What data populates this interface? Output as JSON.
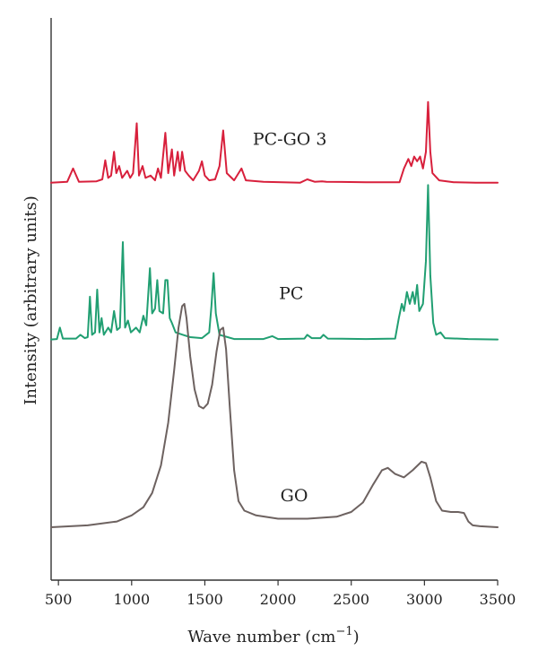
{
  "chart_data": {
    "type": "line",
    "title": "",
    "xlabel": "Wave number (cm",
    "xlabel_sup": "−1",
    "xlabel_close": ")",
    "ylabel": "Intensity (arbitrary units)",
    "xlim": [
      450,
      3500
    ],
    "ylim": [
      0,
      10
    ],
    "x_ticks": [
      500,
      1000,
      1500,
      2000,
      2500,
      3000,
      3500
    ],
    "x_tick_labels": [
      "500",
      "1000",
      "1500",
      "2000",
      "2500",
      "3000",
      "3500"
    ],
    "y_ticks_shown": false,
    "grid": false,
    "legend": "none",
    "series": [
      {
        "name": "PC-GO 3",
        "color": "#d8203c",
        "baseline": 7.25,
        "points": [
          [
            450,
            7.25
          ],
          [
            560,
            7.27
          ],
          [
            600,
            7.55
          ],
          [
            640,
            7.27
          ],
          [
            760,
            7.28
          ],
          [
            800,
            7.32
          ],
          [
            820,
            7.72
          ],
          [
            840,
            7.35
          ],
          [
            860,
            7.4
          ],
          [
            880,
            7.9
          ],
          [
            895,
            7.45
          ],
          [
            915,
            7.6
          ],
          [
            935,
            7.35
          ],
          [
            970,
            7.5
          ],
          [
            990,
            7.35
          ],
          [
            1010,
            7.45
          ],
          [
            1035,
            8.5
          ],
          [
            1050,
            7.4
          ],
          [
            1075,
            7.6
          ],
          [
            1095,
            7.35
          ],
          [
            1130,
            7.4
          ],
          [
            1160,
            7.3
          ],
          [
            1180,
            7.55
          ],
          [
            1200,
            7.35
          ],
          [
            1230,
            8.3
          ],
          [
            1250,
            7.45
          ],
          [
            1275,
            7.95
          ],
          [
            1290,
            7.4
          ],
          [
            1315,
            7.9
          ],
          [
            1330,
            7.5
          ],
          [
            1345,
            7.9
          ],
          [
            1365,
            7.5
          ],
          [
            1390,
            7.4
          ],
          [
            1420,
            7.3
          ],
          [
            1460,
            7.5
          ],
          [
            1480,
            7.7
          ],
          [
            1500,
            7.4
          ],
          [
            1530,
            7.3
          ],
          [
            1570,
            7.32
          ],
          [
            1600,
            7.6
          ],
          [
            1625,
            8.35
          ],
          [
            1650,
            7.45
          ],
          [
            1700,
            7.3
          ],
          [
            1750,
            7.55
          ],
          [
            1780,
            7.3
          ],
          [
            1900,
            7.27
          ],
          [
            2150,
            7.25
          ],
          [
            2200,
            7.32
          ],
          [
            2250,
            7.27
          ],
          [
            2300,
            7.28
          ],
          [
            2330,
            7.27
          ],
          [
            2600,
            7.26
          ],
          [
            2830,
            7.26
          ],
          [
            2860,
            7.55
          ],
          [
            2890,
            7.75
          ],
          [
            2910,
            7.6
          ],
          [
            2930,
            7.8
          ],
          [
            2950,
            7.7
          ],
          [
            2970,
            7.8
          ],
          [
            2990,
            7.55
          ],
          [
            3010,
            7.9
          ],
          [
            3025,
            8.95
          ],
          [
            3040,
            7.9
          ],
          [
            3055,
            7.45
          ],
          [
            3100,
            7.3
          ],
          [
            3200,
            7.26
          ],
          [
            3350,
            7.25
          ],
          [
            3500,
            7.25
          ]
        ]
      },
      {
        "name": "PC",
        "color": "#219f72",
        "baseline": 3.95,
        "points": [
          [
            450,
            3.95
          ],
          [
            490,
            3.96
          ],
          [
            510,
            4.2
          ],
          [
            530,
            3.97
          ],
          [
            620,
            3.97
          ],
          [
            650,
            4.05
          ],
          [
            680,
            3.98
          ],
          [
            700,
            4.0
          ],
          [
            715,
            4.85
          ],
          [
            730,
            4.05
          ],
          [
            750,
            4.1
          ],
          [
            765,
            5.0
          ],
          [
            780,
            4.1
          ],
          [
            795,
            4.4
          ],
          [
            810,
            4.05
          ],
          [
            840,
            4.2
          ],
          [
            860,
            4.1
          ],
          [
            880,
            4.55
          ],
          [
            900,
            4.15
          ],
          [
            920,
            4.2
          ],
          [
            940,
            6.0
          ],
          [
            955,
            4.2
          ],
          [
            975,
            4.35
          ],
          [
            995,
            4.1
          ],
          [
            1030,
            4.2
          ],
          [
            1055,
            4.1
          ],
          [
            1080,
            4.45
          ],
          [
            1100,
            4.25
          ],
          [
            1125,
            5.45
          ],
          [
            1140,
            4.5
          ],
          [
            1160,
            4.6
          ],
          [
            1175,
            5.2
          ],
          [
            1190,
            4.55
          ],
          [
            1215,
            4.5
          ],
          [
            1230,
            5.2
          ],
          [
            1245,
            5.2
          ],
          [
            1260,
            4.4
          ],
          [
            1275,
            4.3
          ],
          [
            1300,
            4.1
          ],
          [
            1350,
            4.05
          ],
          [
            1400,
            4.0
          ],
          [
            1480,
            3.98
          ],
          [
            1530,
            4.1
          ],
          [
            1545,
            4.65
          ],
          [
            1560,
            5.35
          ],
          [
            1575,
            4.5
          ],
          [
            1600,
            4.05
          ],
          [
            1700,
            3.96
          ],
          [
            1900,
            3.96
          ],
          [
            1960,
            4.02
          ],
          [
            2000,
            3.96
          ],
          [
            2180,
            3.97
          ],
          [
            2200,
            4.05
          ],
          [
            2230,
            3.98
          ],
          [
            2290,
            3.98
          ],
          [
            2310,
            4.05
          ],
          [
            2340,
            3.97
          ],
          [
            2600,
            3.96
          ],
          [
            2800,
            3.97
          ],
          [
            2825,
            4.4
          ],
          [
            2845,
            4.7
          ],
          [
            2860,
            4.55
          ],
          [
            2880,
            4.95
          ],
          [
            2900,
            4.7
          ],
          [
            2920,
            4.95
          ],
          [
            2935,
            4.7
          ],
          [
            2950,
            5.1
          ],
          [
            2965,
            4.55
          ],
          [
            2990,
            4.7
          ],
          [
            3010,
            5.6
          ],
          [
            3025,
            7.2
          ],
          [
            3040,
            5.3
          ],
          [
            3060,
            4.3
          ],
          [
            3080,
            4.05
          ],
          [
            3110,
            4.1
          ],
          [
            3140,
            3.98
          ],
          [
            3300,
            3.96
          ],
          [
            3500,
            3.95
          ]
        ]
      },
      {
        "name": "GO",
        "color": "#6d6260",
        "baseline": 0.0,
        "points": [
          [
            450,
            0.0
          ],
          [
            700,
            0.04
          ],
          [
            900,
            0.12
          ],
          [
            1000,
            0.25
          ],
          [
            1080,
            0.42
          ],
          [
            1140,
            0.72
          ],
          [
            1200,
            1.3
          ],
          [
            1250,
            2.2
          ],
          [
            1290,
            3.3
          ],
          [
            1320,
            4.2
          ],
          [
            1345,
            4.65
          ],
          [
            1360,
            4.7
          ],
          [
            1375,
            4.4
          ],
          [
            1400,
            3.6
          ],
          [
            1430,
            2.9
          ],
          [
            1460,
            2.55
          ],
          [
            1490,
            2.5
          ],
          [
            1520,
            2.6
          ],
          [
            1550,
            3.0
          ],
          [
            1580,
            3.7
          ],
          [
            1605,
            4.15
          ],
          [
            1625,
            4.2
          ],
          [
            1645,
            3.75
          ],
          [
            1670,
            2.55
          ],
          [
            1700,
            1.2
          ],
          [
            1730,
            0.55
          ],
          [
            1770,
            0.35
          ],
          [
            1850,
            0.25
          ],
          [
            2000,
            0.18
          ],
          [
            2200,
            0.18
          ],
          [
            2400,
            0.22
          ],
          [
            2500,
            0.32
          ],
          [
            2580,
            0.52
          ],
          [
            2650,
            0.9
          ],
          [
            2710,
            1.2
          ],
          [
            2750,
            1.25
          ],
          [
            2800,
            1.12
          ],
          [
            2860,
            1.05
          ],
          [
            2920,
            1.2
          ],
          [
            2980,
            1.38
          ],
          [
            3010,
            1.35
          ],
          [
            3040,
            1.05
          ],
          [
            3080,
            0.55
          ],
          [
            3120,
            0.35
          ],
          [
            3180,
            0.32
          ],
          [
            3230,
            0.32
          ],
          [
            3270,
            0.3
          ],
          [
            3300,
            0.12
          ],
          [
            3330,
            0.04
          ],
          [
            3380,
            0.02
          ],
          [
            3500,
            0.0
          ]
        ]
      }
    ],
    "annotations": [
      {
        "text": "PC-GO 3",
        "x": 2080,
        "y": 8.05
      },
      {
        "text": "PC",
        "x": 2090,
        "y": 4.8
      },
      {
        "text": "GO",
        "x": 2110,
        "y": 0.55
      }
    ]
  }
}
